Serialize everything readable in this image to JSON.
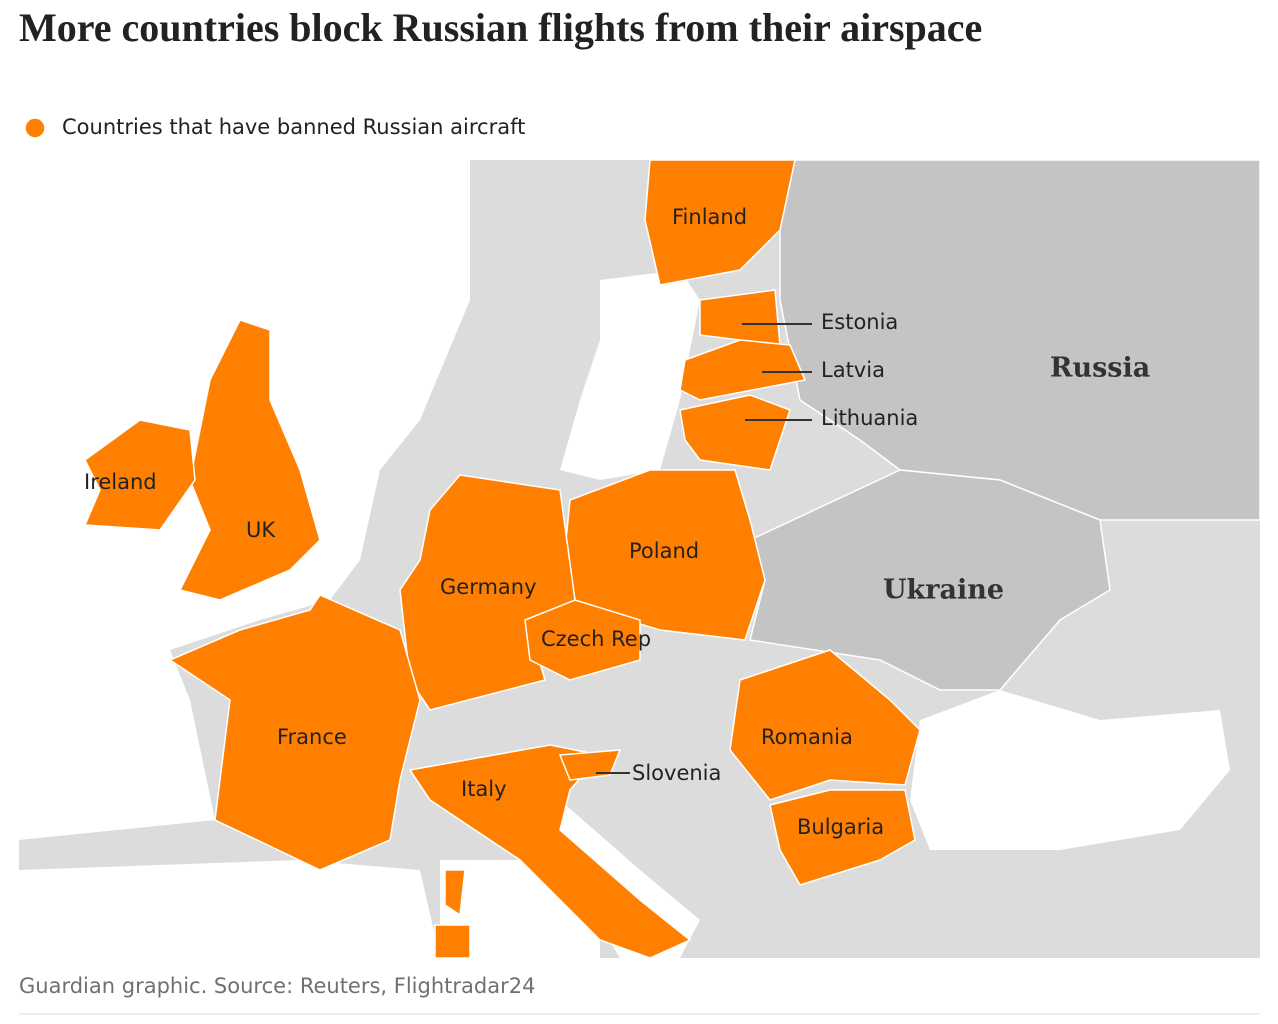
{
  "title": "More countries block Russian flights from their airspace",
  "legend": {
    "label": "Countries that have banned Russian aircraft",
    "color": "#ff7f00"
  },
  "countries": {
    "banned": [
      "Finland",
      "Estonia",
      "Latvia",
      "Lithuania",
      "Ireland",
      "UK",
      "Poland",
      "Germany",
      "Czech Rep",
      "France",
      "Romania",
      "Slovenia",
      "Italy",
      "Bulgaria"
    ],
    "other": [
      "Russia",
      "Ukraine"
    ]
  },
  "source": "Guardian graphic. Source: Reuters, Flightradar24"
}
